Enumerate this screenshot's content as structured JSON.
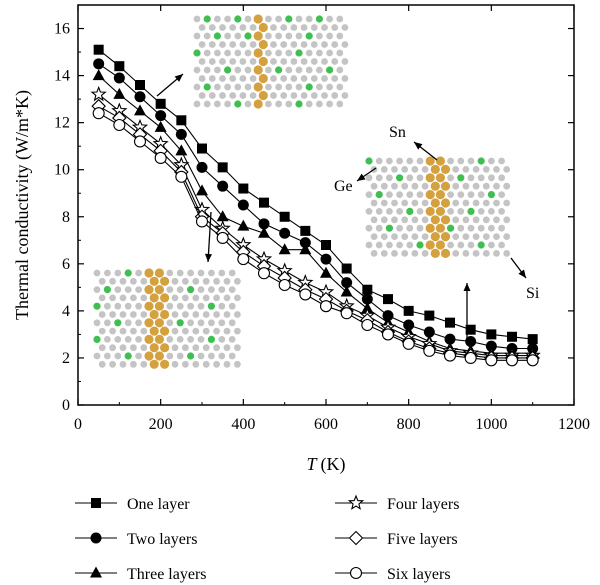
{
  "chart_data": {
    "type": "line",
    "title": "",
    "xlabel_symbol": "T",
    "xlabel_unit": "(K)",
    "ylabel": "Thermal conductivity (W/m*K)",
    "xlim": [
      0,
      1200
    ],
    "ylim": [
      0,
      17
    ],
    "xticks": [
      0,
      200,
      400,
      600,
      800,
      1000,
      1200
    ],
    "yticks": [
      0,
      2,
      4,
      6,
      8,
      10,
      12,
      14,
      16
    ],
    "grid": false,
    "legend_placement": "below",
    "x": [
      50,
      100,
      150,
      200,
      250,
      300,
      350,
      400,
      450,
      500,
      550,
      600,
      650,
      700,
      750,
      800,
      850,
      900,
      950,
      1000,
      1050,
      1100
    ],
    "series": [
      {
        "name": "One layer",
        "marker": "square",
        "values": [
          15.1,
          14.4,
          13.6,
          12.8,
          12.1,
          10.9,
          10.1,
          9.2,
          8.6,
          8.0,
          7.4,
          6.8,
          5.8,
          4.9,
          4.5,
          4.0,
          3.8,
          3.5,
          3.2,
          3.0,
          2.9,
          2.8
        ]
      },
      {
        "name": "Two layers",
        "marker": "circle",
        "values": [
          14.5,
          13.9,
          13.1,
          12.3,
          11.5,
          10.1,
          9.3,
          8.5,
          7.7,
          7.3,
          6.9,
          6.2,
          5.2,
          4.5,
          3.8,
          3.4,
          3.1,
          2.8,
          2.7,
          2.5,
          2.4,
          2.4
        ]
      },
      {
        "name": "Three layers",
        "marker": "triangle",
        "values": [
          14.0,
          13.2,
          12.5,
          11.8,
          10.8,
          9.1,
          8.0,
          7.6,
          7.3,
          6.6,
          6.6,
          5.6,
          4.8,
          4.1,
          3.5,
          3.1,
          2.7,
          2.4,
          2.3,
          2.2,
          2.2,
          2.2
        ]
      },
      {
        "name": "Four layers",
        "marker": "star",
        "values": [
          13.2,
          12.5,
          11.8,
          11.1,
          10.2,
          8.3,
          7.5,
          6.8,
          6.2,
          5.7,
          5.2,
          4.8,
          4.2,
          3.8,
          3.3,
          2.9,
          2.6,
          2.3,
          2.2,
          2.1,
          2.1,
          2.1
        ]
      },
      {
        "name": "Five layers",
        "marker": "diamond",
        "values": [
          12.7,
          12.2,
          11.5,
          10.8,
          9.9,
          8.0,
          7.3,
          6.5,
          5.9,
          5.4,
          4.9,
          4.5,
          4.0,
          3.6,
          3.1,
          2.7,
          2.4,
          2.2,
          2.1,
          2.0,
          2.0,
          2.0
        ]
      },
      {
        "name": "Six layers",
        "marker": "circle-open",
        "values": [
          12.4,
          11.9,
          11.2,
          10.5,
          9.7,
          7.8,
          7.1,
          6.2,
          5.6,
          5.1,
          4.7,
          4.2,
          3.9,
          3.4,
          3.0,
          2.6,
          2.3,
          2.1,
          2.0,
          1.9,
          1.9,
          1.9
        ]
      }
    ],
    "annotations": {
      "sn": "Sn",
      "ge": "Ge",
      "si": "Si"
    }
  },
  "colors": {
    "si": "#c4c4c4",
    "ge": "#3fbf50",
    "sn": "#d4a13e",
    "axis": "#000000"
  }
}
